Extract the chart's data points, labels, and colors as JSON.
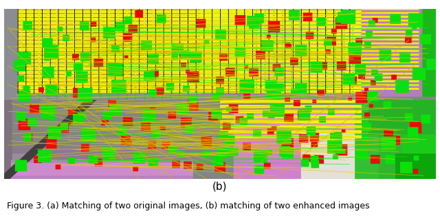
{
  "image_label": "(b)",
  "caption": "Figure 3. (a) Matching of two original images, (b) matching of two enhanced images",
  "bg_color": "#ffffff",
  "label_fontsize": 11,
  "caption_fontsize": 9,
  "fig_width": 6.4,
  "fig_height": 3.18
}
